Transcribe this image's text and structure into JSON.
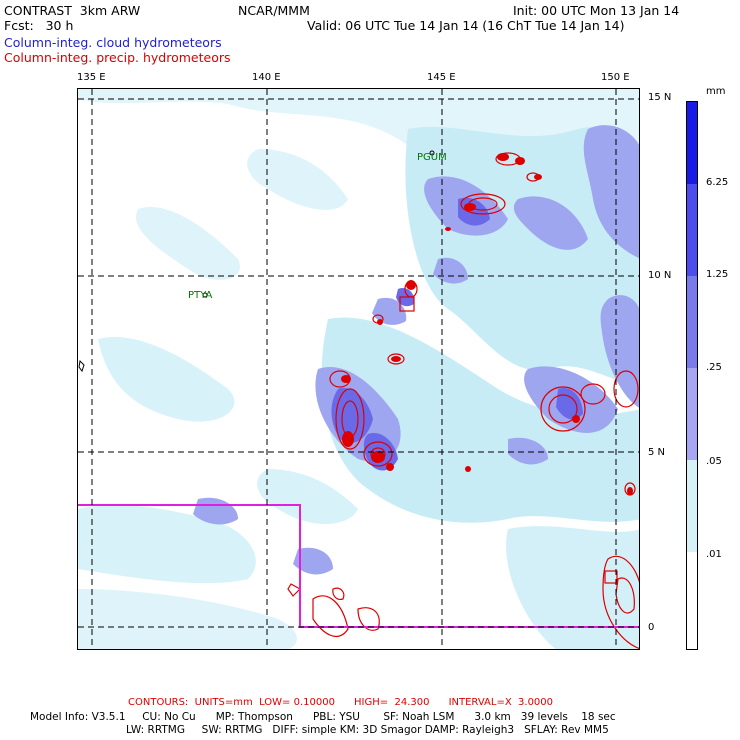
{
  "header": {
    "left1": "CONTRAST  3km ARW",
    "center": "NCAR/MMM",
    "init": "Init: 00 UTC Mon 13 Jan 14",
    "fcst": "Fcst:   30 h",
    "valid": "Valid: 06 UTC Tue 14 Jan 14 (16 ChT Tue 14 Jan 14)",
    "field1": "Column-integ. cloud hydrometeors",
    "field2": "Column-integ. precip. hydrometeors"
  },
  "axes": {
    "lon_labels": [
      "135 E",
      "140 E",
      "145 E",
      "150 E"
    ],
    "lat_labels": [
      "15 N",
      "10 N",
      "5 N",
      "0"
    ]
  },
  "places": [
    {
      "name": "PGUM"
    },
    {
      "name": "PTYA"
    }
  ],
  "legend": {
    "unit": "mm",
    "levels": [
      "6.25",
      "1.25",
      ".25",
      ".05",
      ".01"
    ],
    "colors": [
      "#1a1ae6",
      "#4d4ded",
      "#7a7aeb",
      "#a6a6f2",
      "#d6f2f8",
      "#ffffff"
    ]
  },
  "footer": {
    "contours": "CONTOURS:  UNITS=mm  LOW= 0.10000      HIGH=  24.300      INTERVAL=X  3.0000",
    "model1": "Model Info: V3.5.1     CU: No Cu      MP: Thompson      PBL: YSU       SF: Noah LSM      3.0 km   39 levels    18 sec",
    "model2": "LW: RRTMG     SW: RRTMG   DIFF: simple KM: 3D Smagor DAMP: Rayleigh3   SFLAY: Rev MM5"
  },
  "colors": {
    "cloud_light": "#c8ecf6",
    "cloud_mid": "#9fa6f0",
    "cloud_dark": "#6a6ae8",
    "precip": "#dd0000",
    "box": "#e020e0"
  }
}
